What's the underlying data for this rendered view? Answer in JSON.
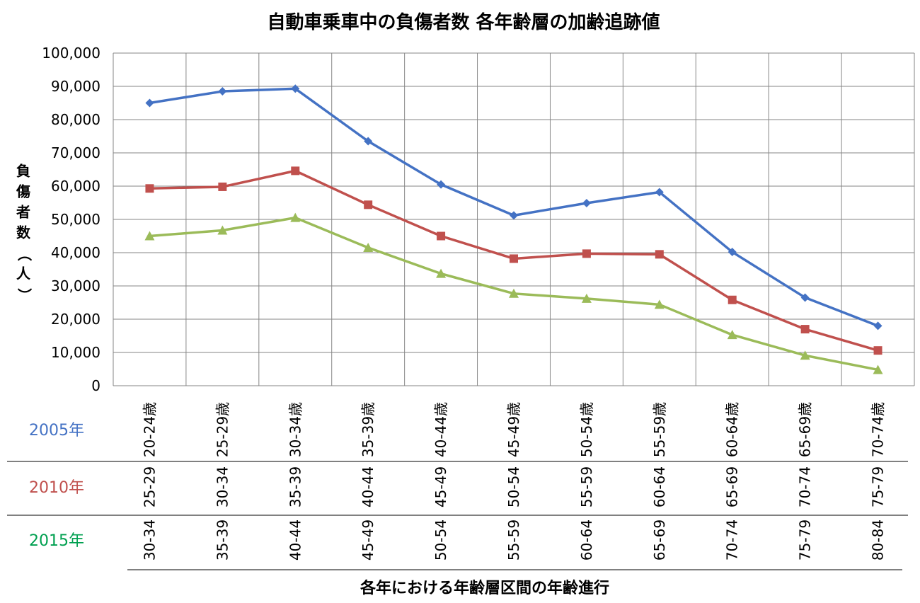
{
  "chart_data": {
    "type": "line",
    "title": "自動車乗車中の負傷者数 各年齢層の加齢追跡値",
    "ylabel": "負傷者数（人）",
    "xlabel": "各年における年齢層区間の年齢進行",
    "ylim": [
      0,
      100000
    ],
    "yticks": [
      "0",
      "10,000",
      "20,000",
      "30,000",
      "40,000",
      "50,000",
      "60,000",
      "70,000",
      "80,000",
      "90,000",
      "100,000"
    ],
    "grid": true,
    "series": [
      {
        "name": "2005年",
        "color": "#4472C4",
        "marker": "diamond",
        "categories": [
          "20-24歳",
          "25-29歳",
          "30-34歳",
          "35-39歳",
          "40-44歳",
          "45-49歳",
          "50-54歳",
          "55-59歳",
          "60-64歳",
          "65-69歳",
          "70-74歳"
        ],
        "values": [
          85000,
          88500,
          89300,
          73500,
          60500,
          51200,
          54900,
          58200,
          40200,
          26500,
          18000
        ]
      },
      {
        "name": "2010年",
        "color": "#C0504D",
        "marker": "square",
        "categories": [
          "25-29",
          "30-34",
          "35-39",
          "40-44",
          "45-49",
          "50-54",
          "55-59",
          "60-64",
          "65-69",
          "70-74",
          "75-79"
        ],
        "values": [
          59300,
          59800,
          64600,
          54400,
          45000,
          38200,
          39700,
          39500,
          25800,
          17000,
          10600
        ]
      },
      {
        "name": "2015年",
        "color": "#9BBB59",
        "label_color": "#00A050",
        "marker": "triangle",
        "categories": [
          "30-34",
          "35-39",
          "40-44",
          "45-49",
          "50-54",
          "55-59",
          "60-64",
          "65-69",
          "70-74",
          "75-79",
          "80-84"
        ],
        "values": [
          45000,
          46700,
          50500,
          41500,
          33700,
          27700,
          26200,
          24400,
          15300,
          9100,
          4800
        ]
      }
    ]
  }
}
